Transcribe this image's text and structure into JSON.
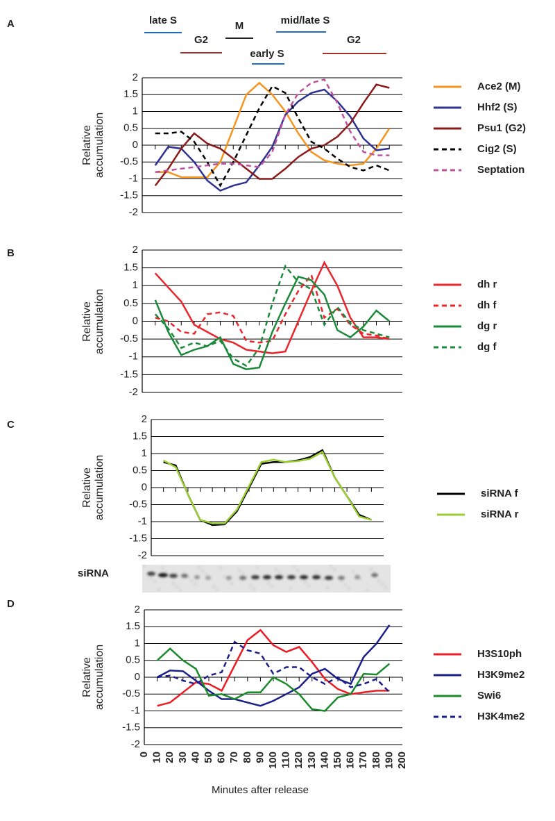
{
  "chart_data": [
    {
      "type": "line",
      "panel": "A",
      "annotations": [
        {
          "text": "late S",
          "color": "#1f6fc5"
        },
        {
          "text": "G2",
          "color": "#a3302d"
        },
        {
          "text": "M",
          "color": "#222222"
        },
        {
          "text": "early S",
          "color": "#1f6fc5"
        },
        {
          "text": "mid/late S",
          "color": "#1f6fc5"
        },
        {
          "text": "G2",
          "color": "#a3302d"
        }
      ],
      "ylabel": "Relative accumulation",
      "x": [
        10,
        20,
        30,
        40,
        50,
        60,
        70,
        80,
        90,
        100,
        110,
        120,
        130,
        140,
        150,
        160,
        170,
        180,
        190
      ],
      "xlim": [
        0,
        200
      ],
      "ylim": [
        -2,
        2
      ],
      "yticks": [
        -2,
        -1.5,
        -1,
        -0.5,
        0,
        0.5,
        1,
        1.5,
        2
      ],
      "grid": true,
      "legend": "right",
      "series": [
        {
          "name": "Ace2 (M)",
          "color": "#f7941d",
          "dashed": false,
          "values": [
            -0.8,
            -0.8,
            -0.95,
            -0.95,
            -0.95,
            -0.5,
            0.5,
            1.5,
            1.85,
            1.5,
            1.0,
            0.35,
            -0.2,
            -0.45,
            -0.55,
            -0.6,
            -0.55,
            -0.1,
            0.5
          ]
        },
        {
          "name": "Hhf2 (S)",
          "color": "#2e3192",
          "dashed": false,
          "values": [
            -0.6,
            -0.05,
            -0.1,
            -0.5,
            -1.05,
            -1.35,
            -1.2,
            -1.1,
            -0.6,
            -0.05,
            0.9,
            1.3,
            1.55,
            1.65,
            1.3,
            0.85,
            0.2,
            -0.15,
            -0.1
          ]
        },
        {
          "name": "Psu1 (G2)",
          "color": "#8b1a1a",
          "dashed": false,
          "values": [
            -1.2,
            -0.7,
            -0.1,
            0.35,
            0.05,
            -0.1,
            -0.4,
            -0.7,
            -1.0,
            -1.0,
            -0.7,
            -0.35,
            -0.1,
            0.0,
            0.25,
            0.65,
            1.25,
            1.8,
            1.7
          ]
        },
        {
          "name": "Cig2 (S)",
          "color": "#000000",
          "dashed": true,
          "values": [
            0.35,
            0.35,
            0.4,
            0.1,
            -0.5,
            -1.2,
            -0.5,
            0.3,
            1.1,
            1.75,
            1.55,
            0.8,
            0.1,
            -0.1,
            -0.4,
            -0.65,
            -0.75,
            -0.6,
            -0.75
          ]
        },
        {
          "name": "Septation",
          "color": "#c0509f",
          "dashed": true,
          "values": [
            -0.8,
            -0.75,
            -0.7,
            -0.65,
            -0.6,
            -0.55,
            -0.55,
            -0.6,
            -0.65,
            -0.2,
            0.9,
            1.55,
            1.85,
            1.95,
            1.25,
            0.4,
            -0.2,
            -0.3,
            -0.3
          ]
        }
      ]
    },
    {
      "type": "line",
      "panel": "B",
      "ylabel": "Relative accumulation",
      "x": [
        10,
        20,
        30,
        40,
        50,
        60,
        70,
        80,
        90,
        100,
        110,
        120,
        130,
        140,
        150,
        160,
        170,
        180,
        190
      ],
      "xlim": [
        0,
        200
      ],
      "ylim": [
        -2,
        2
      ],
      "yticks": [
        -2,
        -1.5,
        -1,
        -0.5,
        0,
        0.5,
        1,
        1.5,
        2
      ],
      "grid": true,
      "legend": "right",
      "series": [
        {
          "name": "dh r",
          "color": "#e8262b",
          "dashed": false,
          "values": [
            1.35,
            0.95,
            0.55,
            -0.1,
            -0.3,
            -0.5,
            -0.6,
            -0.8,
            -0.85,
            -0.9,
            -0.85,
            0.0,
            0.85,
            1.65,
            1.0,
            0.1,
            -0.45,
            -0.45,
            -0.5
          ]
        },
        {
          "name": "dh f",
          "color": "#e8262b",
          "dashed": true,
          "values": [
            0.1,
            0.0,
            -0.3,
            -0.35,
            0.2,
            0.25,
            0.15,
            -0.55,
            -0.6,
            -0.55,
            0.2,
            0.85,
            1.3,
            0.1,
            0.35,
            -0.1,
            -0.35,
            -0.4,
            -0.5
          ]
        },
        {
          "name": "dg r",
          "color": "#1a8a3a",
          "dashed": false,
          "values": [
            0.6,
            -0.3,
            -0.95,
            -0.8,
            -0.7,
            -0.45,
            -1.2,
            -1.35,
            -1.3,
            -0.3,
            0.5,
            1.25,
            1.15,
            0.75,
            -0.25,
            -0.45,
            -0.15,
            0.3,
            0.0
          ]
        },
        {
          "name": "dg f",
          "color": "#1a8a3a",
          "dashed": true,
          "values": [
            0.2,
            -0.2,
            -0.75,
            -0.6,
            -0.7,
            -0.55,
            -1.05,
            -1.25,
            -0.75,
            0.5,
            1.55,
            1.1,
            0.9,
            -0.1,
            0.4,
            -0.05,
            -0.25,
            -0.35,
            -0.45
          ]
        }
      ]
    },
    {
      "type": "line",
      "panel": "C",
      "ylabel": "Relative accumulation",
      "image_label": "siRNA",
      "x": [
        10,
        20,
        30,
        40,
        50,
        60,
        70,
        80,
        90,
        100,
        110,
        120,
        130,
        140,
        150,
        160,
        170,
        180
      ],
      "xlim": [
        0,
        190
      ],
      "ylim": [
        -2,
        2
      ],
      "yticks": [
        -2,
        -1.5,
        -1,
        -0.5,
        0,
        0.5,
        1,
        1.5,
        2
      ],
      "grid": true,
      "legend": "right",
      "series": [
        {
          "name": "siRNA f",
          "color": "#000000",
          "dashed": false,
          "values": [
            0.75,
            0.65,
            -0.2,
            -0.95,
            -1.1,
            -1.08,
            -0.7,
            0.0,
            0.7,
            0.75,
            0.75,
            0.8,
            0.9,
            1.1,
            0.3,
            -0.25,
            -0.8,
            -0.95
          ]
        },
        {
          "name": "siRNA r",
          "color": "#9acd32",
          "dashed": false,
          "values": [
            0.8,
            0.6,
            -0.2,
            -0.95,
            -1.05,
            -1.05,
            -0.65,
            0.05,
            0.75,
            0.82,
            0.75,
            0.78,
            0.85,
            1.05,
            0.3,
            -0.25,
            -0.85,
            -0.95
          ]
        }
      ]
    },
    {
      "type": "line",
      "panel": "D",
      "ylabel": "Relative accumulation",
      "xlabel": "Minutes after release",
      "x": [
        10,
        20,
        30,
        40,
        50,
        60,
        70,
        80,
        90,
        100,
        110,
        120,
        130,
        140,
        150,
        160,
        170,
        180,
        190
      ],
      "xlim": [
        0,
        200
      ],
      "xticks": [
        0,
        10,
        20,
        30,
        40,
        50,
        60,
        70,
        80,
        90,
        100,
        110,
        120,
        130,
        140,
        150,
        160,
        170,
        180,
        190,
        200
      ],
      "ylim": [
        -2,
        2
      ],
      "yticks": [
        -2,
        -1.5,
        -1,
        -0.5,
        0,
        0.5,
        1,
        1.5,
        2
      ],
      "grid": true,
      "legend": "right",
      "series": [
        {
          "name": "H3S10ph",
          "color": "#ed1c24",
          "dashed": false,
          "values": [
            -0.85,
            -0.75,
            -0.45,
            -0.15,
            -0.2,
            -0.4,
            0.35,
            1.1,
            1.4,
            0.95,
            0.75,
            0.9,
            0.45,
            -0.05,
            -0.35,
            -0.5,
            -0.45,
            -0.4,
            -0.4
          ]
        },
        {
          "name": "H3K9me2",
          "color": "#1b1f8a",
          "dashed": false,
          "values": [
            0.0,
            0.2,
            0.18,
            -0.1,
            -0.4,
            -0.65,
            -0.65,
            -0.75,
            -0.85,
            -0.7,
            -0.5,
            -0.3,
            0.1,
            0.25,
            -0.05,
            -0.2,
            0.6,
            1.0,
            1.55
          ]
        },
        {
          "name": "Swi6",
          "color": "#1a8a2a",
          "dashed": false,
          "values": [
            0.5,
            0.85,
            0.5,
            0.25,
            -0.55,
            -0.5,
            -0.65,
            -0.45,
            -0.45,
            0.0,
            -0.2,
            -0.5,
            -0.95,
            -1.0,
            -0.6,
            -0.5,
            0.1,
            0.08,
            0.4
          ]
        },
        {
          "name": "H3K4me2",
          "color": "#1b1f8a",
          "dashed": true,
          "values": [
            0.0,
            0.05,
            -0.1,
            -0.2,
            0.05,
            0.15,
            1.05,
            0.8,
            0.7,
            0.1,
            0.3,
            0.3,
            0.0,
            -0.2,
            0.0,
            -0.3,
            -0.2,
            -0.05,
            -0.45
          ]
        }
      ]
    }
  ]
}
